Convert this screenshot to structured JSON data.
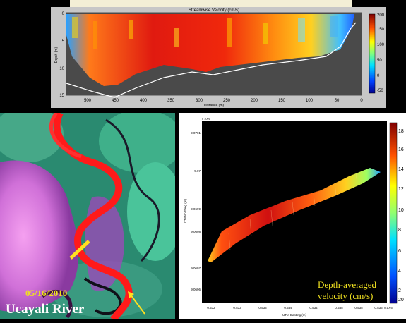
{
  "top_panel": {
    "title": "Streamwise Velocity (cm/s)",
    "xlabel": "Distance (m)",
    "ylabel": "Depth (m)",
    "x_ticks": [
      "500",
      "450",
      "400",
      "350",
      "300",
      "250",
      "200",
      "150",
      "100",
      "50",
      "0"
    ],
    "y_ticks": [
      "0",
      "5",
      "10",
      "15"
    ],
    "colorbar_ticks": [
      "200",
      "150",
      "100",
      "50",
      "0",
      "-50"
    ]
  },
  "left_panel": {
    "date": "05/16/2010",
    "river_name": "Ucayali River"
  },
  "right_panel": {
    "caption_line1": "Depth-averaged",
    "caption_line2": "velocity (cm/s)",
    "colorbar_ticks": [
      "18",
      "16",
      "14",
      "12",
      "10",
      "8",
      "6",
      "4",
      "2",
      "20"
    ],
    "y_ticks": [
      "9.0701",
      "9.07",
      "9.0699",
      "9.0698",
      "9.0697",
      "9.0696"
    ],
    "x_ticks": [
      "0.532",
      "0.533",
      "0.533",
      "0.534",
      "0.534",
      "0.535",
      "0.535",
      "0.536"
    ],
    "xlabel": "UTM Easting (m)",
    "ylabel": "UTM Northing (m)",
    "x_exp": "x 10^5",
    "y_exp": "x 10^6"
  }
}
